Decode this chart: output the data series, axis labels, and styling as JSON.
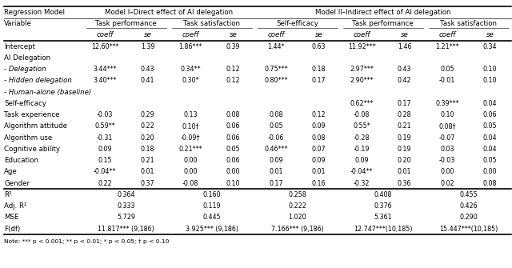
{
  "model1_header": "Model I–Direct effect of AI delegation",
  "model2_header": "Model II–Indirect effect of AI delegation",
  "group_names": [
    "Task performance",
    "Task satisfaction",
    "Self-efficacy",
    "Task performance",
    "Task satisfaction"
  ],
  "rows": [
    {
      "var": "Intercept",
      "italic": false,
      "vals": [
        "12.60***",
        "1.39",
        "1.86***",
        "0.39",
        "1.44*",
        "0.63",
        "11.92***",
        "1.46",
        "1.21***",
        "0.34"
      ]
    },
    {
      "var": "AI Delegation",
      "italic": false,
      "vals": [
        "",
        "",
        "",
        "",
        "",
        "",
        "",
        "",
        "",
        ""
      ]
    },
    {
      "var": "- Delegation",
      "italic": true,
      "vals": [
        "3.44***",
        "0.43",
        "0.34**",
        "0.12",
        "0.75***",
        "0.18",
        "2.97***",
        "0.43",
        "0.05",
        "0.10"
      ]
    },
    {
      "var": "- Hidden delegation",
      "italic": true,
      "vals": [
        "3.40***",
        "0.41",
        "0.30*",
        "0.12",
        "0.80***",
        "0.17",
        "2.90***",
        "0.42",
        "-0.01",
        "0.10"
      ]
    },
    {
      "var": "- Human-alone (baseline)",
      "italic": true,
      "vals": [
        "",
        "",
        "",
        "",
        "",
        "",
        "",
        "",
        "",
        ""
      ]
    },
    {
      "var": "Self-efficacy",
      "italic": false,
      "vals": [
        "",
        "",
        "",
        "",
        "",
        "",
        "0.62***",
        "0.17",
        "0.39***",
        "0.04"
      ]
    },
    {
      "var": "Task experience",
      "italic": false,
      "vals": [
        "-0.03",
        "0.29",
        "0.13",
        "0.08",
        "0.08",
        "0.12",
        "-0.08",
        "0.28",
        "0.10",
        "0.06"
      ]
    },
    {
      "var": "Algorithm attitude",
      "italic": false,
      "vals": [
        "0.59**",
        "0.22",
        "0.10†",
        "0.06",
        "0.05",
        "0.09",
        "0.55*",
        "0.21",
        "0.08†",
        "0.05"
      ]
    },
    {
      "var": "Algorithm use",
      "italic": false,
      "vals": [
        "-0.31",
        "0.20",
        "-0.09†",
        "0.06",
        "-0.06",
        "0.08",
        "-0.28",
        "0.19",
        "-0.07",
        "0.04"
      ]
    },
    {
      "var": "Cognitive ability",
      "italic": false,
      "vals": [
        "0.09",
        "0.18",
        "0.21***",
        "0.05",
        "0.46***",
        "0.07",
        "-0.19",
        "0.19",
        "0.03",
        "0.04"
      ]
    },
    {
      "var": "Education",
      "italic": false,
      "vals": [
        "0.15",
        "0.21",
        "0.00",
        "0.06",
        "0.09",
        "0.09",
        "0.09",
        "0.20",
        "-0.03",
        "0.05"
      ]
    },
    {
      "var": "Age",
      "italic": false,
      "vals": [
        "-0.04**",
        "0.01",
        "0.00",
        "0.00",
        "0.01",
        "0.01",
        "-0.04**",
        "0.01",
        "0.00",
        "0.00"
      ]
    },
    {
      "var": "Gender",
      "italic": false,
      "vals": [
        "0.22",
        "0.37",
        "-0.08",
        "0.10",
        "0.17",
        "0.16",
        "-0.32",
        "0.36",
        "0.02",
        "0.08"
      ]
    }
  ],
  "stat_rows": [
    {
      "var": "R²",
      "vals": [
        "0.364",
        "0.160",
        "0.258",
        "0.408",
        "0.455"
      ]
    },
    {
      "var": "Adj. R²",
      "vals": [
        "0.333",
        "0.119",
        "0.222",
        "0.376",
        "0.426"
      ]
    },
    {
      "var": "MSE",
      "vals": [
        "5.729",
        "0.445",
        "1.020",
        "5.361",
        "0.290"
      ]
    },
    {
      "var": "F(df)",
      "vals": [
        "11.817*** (9,186)",
        "3.925*** (9,186)",
        "7.166*** (9,186)",
        "12.747***(10,185)",
        "15.447***(10,185)"
      ]
    }
  ],
  "note": "Note: *** p < 0.001; ** p < 0.01; * p < 0.05; † p < 0.10",
  "bg_color": "#ffffff",
  "font_size": 6.2,
  "font_size_small": 5.8
}
